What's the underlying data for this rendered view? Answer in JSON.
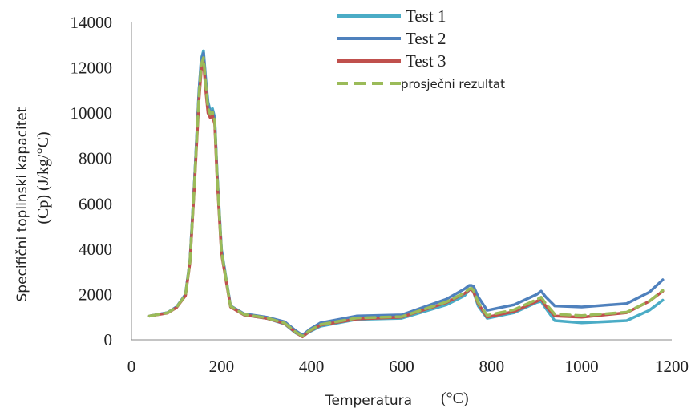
{
  "chart_data": {
    "type": "line",
    "title": "",
    "xlabel_main": "Temperatura",
    "xlabel_unit": "(°C)",
    "ylabel_line1": "Specifični toplinski kapacitet",
    "ylabel_line2": "(Cp) (J/kg/°C)",
    "xlim": [
      0,
      1200
    ],
    "ylim": [
      0,
      14000
    ],
    "xticks": [
      "0",
      "200",
      "400",
      "600",
      "800",
      "1000",
      "1200"
    ],
    "yticks": [
      "0",
      "2000",
      "4000",
      "6000",
      "8000",
      "10000",
      "12000",
      "14000"
    ],
    "grid": false,
    "legend_position": "top-right",
    "colors": {
      "test1": "#4bacc6",
      "test2": "#4f81bd",
      "test3": "#c0504d",
      "avg": "#9bbb59"
    },
    "series": [
      {
        "name": "Test 1",
        "x": [
          40,
          80,
          100,
          120,
          130,
          140,
          150,
          155,
          160,
          165,
          170,
          175,
          180,
          185,
          190,
          200,
          220,
          250,
          300,
          340,
          365,
          380,
          395,
          420,
          500,
          600,
          700,
          740,
          750,
          755,
          760,
          770,
          790,
          850,
          900,
          910,
          920,
          940,
          1000,
          1100,
          1150,
          1180
        ],
        "y": [
          1050,
          1200,
          1450,
          2000,
          3500,
          7000,
          11000,
          12400,
          12750,
          11500,
          10500,
          10100,
          10200,
          9800,
          7500,
          4000,
          1500,
          1100,
          950,
          700,
          300,
          150,
          350,
          600,
          900,
          950,
          1550,
          1950,
          2200,
          2250,
          2100,
          1500,
          950,
          1200,
          1650,
          1700,
          1400,
          850,
          750,
          850,
          1300,
          1750
        ]
      },
      {
        "name": "Test 2",
        "x": [
          40,
          80,
          100,
          120,
          130,
          140,
          150,
          155,
          160,
          165,
          170,
          175,
          180,
          185,
          190,
          200,
          220,
          250,
          300,
          340,
          365,
          380,
          395,
          420,
          500,
          600,
          700,
          740,
          750,
          755,
          760,
          770,
          790,
          850,
          900,
          910,
          920,
          940,
          1000,
          1100,
          1150,
          1180
        ],
        "y": [
          1050,
          1200,
          1450,
          2000,
          3500,
          7000,
          11000,
          12300,
          12650,
          11400,
          10400,
          10000,
          10100,
          9700,
          7400,
          3900,
          1500,
          1150,
          1000,
          800,
          400,
          200,
          450,
          750,
          1050,
          1100,
          1800,
          2250,
          2400,
          2400,
          2350,
          1900,
          1300,
          1550,
          2000,
          2150,
          1900,
          1500,
          1450,
          1600,
          2100,
          2650
        ]
      },
      {
        "name": "Test 3",
        "x": [
          40,
          80,
          100,
          120,
          130,
          140,
          150,
          155,
          160,
          165,
          170,
          175,
          180,
          185,
          190,
          200,
          220,
          250,
          300,
          340,
          365,
          380,
          395,
          420,
          500,
          600,
          700,
          740,
          750,
          755,
          760,
          770,
          790,
          850,
          900,
          910,
          920,
          940,
          1000,
          1100,
          1150,
          1180
        ],
        "y": [
          1050,
          1180,
          1420,
          1950,
          3400,
          6800,
          10600,
          11900,
          12250,
          11000,
          10000,
          9800,
          9900,
          9500,
          7200,
          3800,
          1450,
          1100,
          950,
          720,
          320,
          130,
          380,
          650,
          920,
          1000,
          1650,
          2050,
          2200,
          2250,
          2100,
          1600,
          1000,
          1250,
          1700,
          1800,
          1500,
          1050,
          1000,
          1200,
          1700,
          2150
        ]
      },
      {
        "name": "prosječni rezultat",
        "x": [
          40,
          80,
          100,
          120,
          130,
          140,
          150,
          155,
          160,
          165,
          170,
          175,
          180,
          185,
          190,
          200,
          220,
          250,
          300,
          340,
          365,
          380,
          395,
          420,
          500,
          600,
          700,
          740,
          750,
          755,
          760,
          770,
          790,
          850,
          900,
          910,
          920,
          940,
          1000,
          1100,
          1150,
          1180
        ],
        "y": [
          1050,
          1190,
          1440,
          1980,
          3450,
          6900,
          10800,
          12150,
          12450,
          11250,
          10250,
          9950,
          10050,
          9650,
          7350,
          3900,
          1480,
          1120,
          970,
          740,
          340,
          160,
          400,
          670,
          960,
          1020,
          1680,
          2080,
          2250,
          2280,
          2170,
          1650,
          1080,
          1330,
          1780,
          1880,
          1600,
          1130,
          1070,
          1220,
          1700,
          2180
        ]
      }
    ]
  }
}
